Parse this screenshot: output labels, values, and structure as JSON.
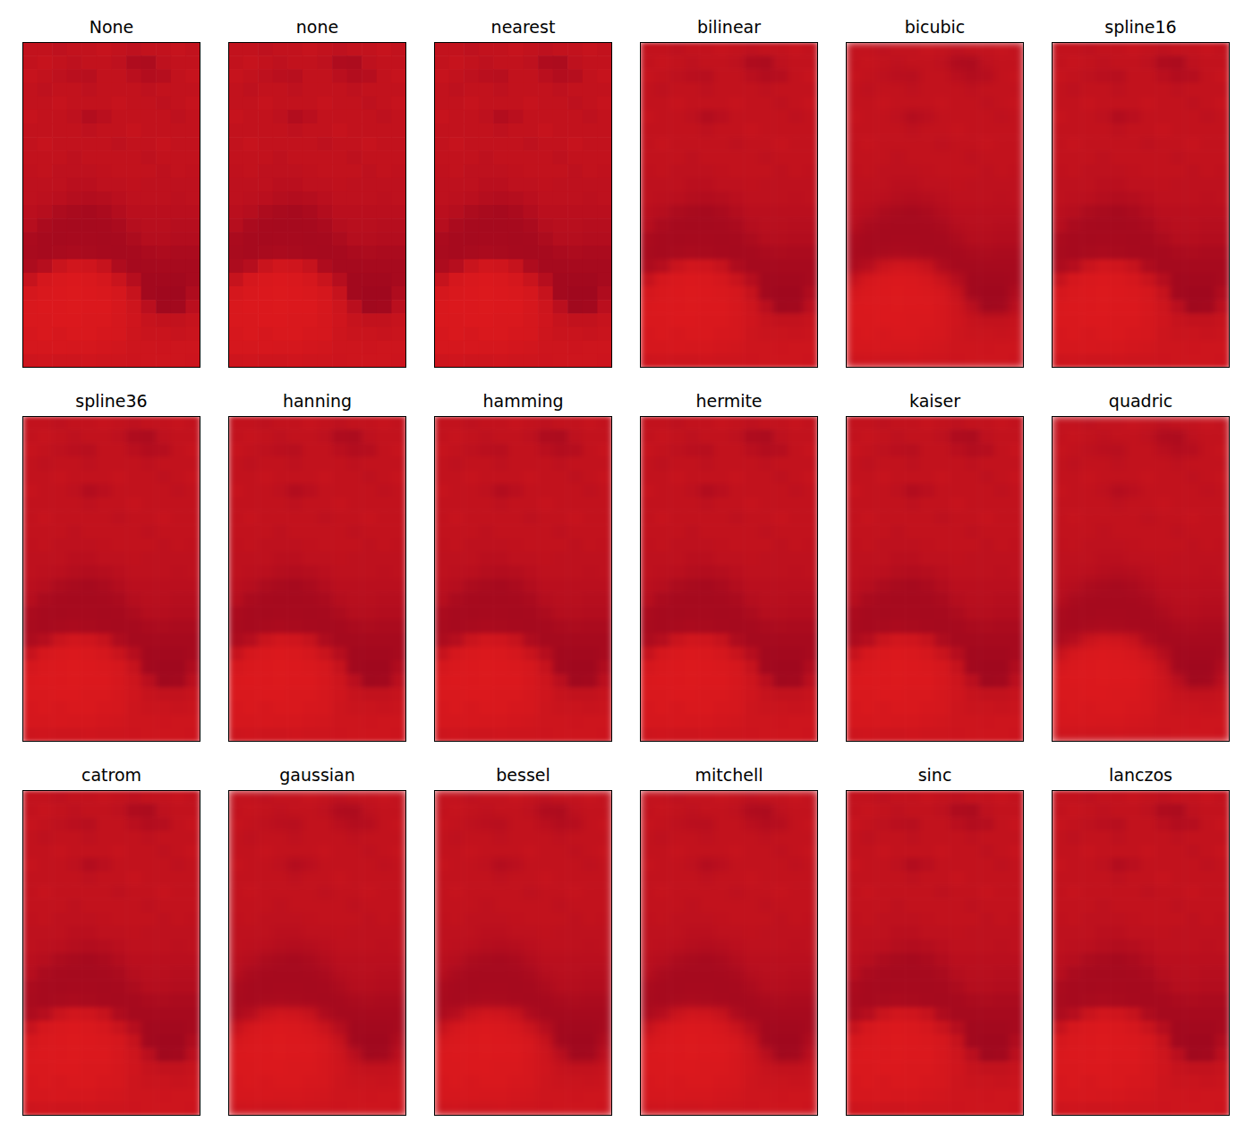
{
  "chart_data": {
    "type": "heatmap",
    "titles": [
      "None",
      "none",
      "nearest",
      "bilinear",
      "bicubic",
      "spline16",
      "spline36",
      "hanning",
      "hamming",
      "hermite",
      "kaiser",
      "quadric",
      "catrom",
      "gaussian",
      "bessel",
      "mitchell",
      "sinc",
      "lanczos"
    ],
    "tick_labels": false,
    "cells": [
      [
        0.45,
        0.45,
        0.5,
        0.45,
        0.45,
        0.4,
        0.45,
        0.5,
        0.45,
        0.45,
        0.4,
        0.45
      ],
      [
        0.45,
        0.4,
        0.45,
        0.5,
        0.45,
        0.45,
        0.5,
        0.7,
        0.72,
        0.5,
        0.45,
        0.45
      ],
      [
        0.4,
        0.45,
        0.5,
        0.55,
        0.58,
        0.45,
        0.45,
        0.55,
        0.65,
        0.6,
        0.45,
        0.4
      ],
      [
        0.45,
        0.5,
        0.45,
        0.45,
        0.5,
        0.45,
        0.45,
        0.45,
        0.5,
        0.45,
        0.45,
        0.45
      ],
      [
        0.45,
        0.45,
        0.4,
        0.45,
        0.45,
        0.45,
        0.4,
        0.45,
        0.45,
        0.5,
        0.45,
        0.4
      ],
      [
        0.4,
        0.45,
        0.45,
        0.5,
        0.65,
        0.55,
        0.45,
        0.45,
        0.45,
        0.45,
        0.5,
        0.45
      ],
      [
        0.45,
        0.45,
        0.45,
        0.45,
        0.5,
        0.45,
        0.45,
        0.4,
        0.45,
        0.45,
        0.45,
        0.45
      ],
      [
        0.45,
        0.4,
        0.45,
        0.45,
        0.45,
        0.45,
        0.5,
        0.45,
        0.45,
        0.4,
        0.45,
        0.45
      ],
      [
        0.45,
        0.45,
        0.45,
        0.5,
        0.45,
        0.45,
        0.45,
        0.45,
        0.5,
        0.45,
        0.45,
        0.45
      ],
      [
        0.48,
        0.45,
        0.5,
        0.5,
        0.5,
        0.48,
        0.45,
        0.45,
        0.45,
        0.5,
        0.45,
        0.48
      ],
      [
        0.5,
        0.5,
        0.5,
        0.55,
        0.55,
        0.5,
        0.5,
        0.48,
        0.5,
        0.5,
        0.5,
        0.5
      ],
      [
        0.5,
        0.52,
        0.55,
        0.62,
        0.65,
        0.62,
        0.55,
        0.5,
        0.5,
        0.5,
        0.52,
        0.5
      ],
      [
        0.55,
        0.6,
        0.72,
        0.78,
        0.8,
        0.75,
        0.65,
        0.55,
        0.55,
        0.55,
        0.55,
        0.55
      ],
      [
        0.6,
        0.75,
        0.8,
        0.82,
        0.82,
        0.8,
        0.75,
        0.62,
        0.58,
        0.58,
        0.6,
        0.6
      ],
      [
        0.75,
        0.8,
        0.82,
        0.8,
        0.8,
        0.82,
        0.8,
        0.72,
        0.62,
        0.62,
        0.65,
        0.65
      ],
      [
        0.78,
        0.8,
        0.78,
        0.75,
        0.78,
        0.8,
        0.82,
        0.8,
        0.75,
        0.72,
        0.75,
        0.75
      ],
      [
        0.72,
        0.6,
        0.35,
        0.25,
        0.28,
        0.4,
        0.7,
        0.82,
        0.82,
        0.8,
        0.8,
        0.8
      ],
      [
        0.4,
        0.2,
        0.15,
        0.12,
        0.15,
        0.2,
        0.35,
        0.6,
        0.85,
        0.85,
        0.85,
        0.8
      ],
      [
        0.2,
        0.15,
        0.12,
        0.1,
        0.12,
        0.15,
        0.2,
        0.4,
        0.85,
        0.9,
        0.9,
        0.7
      ],
      [
        0.15,
        0.12,
        0.12,
        0.1,
        0.12,
        0.12,
        0.18,
        0.3,
        0.55,
        0.88,
        0.85,
        0.55
      ],
      [
        0.15,
        0.15,
        0.12,
        0.12,
        0.15,
        0.15,
        0.2,
        0.28,
        0.4,
        0.45,
        0.45,
        0.4
      ],
      [
        0.18,
        0.15,
        0.18,
        0.15,
        0.15,
        0.18,
        0.2,
        0.3,
        0.35,
        0.35,
        0.38,
        0.35
      ],
      [
        0.2,
        0.2,
        0.18,
        0.2,
        0.2,
        0.22,
        0.25,
        0.3,
        0.3,
        0.32,
        0.3,
        0.3
      ],
      [
        0.3,
        0.28,
        0.3,
        0.3,
        0.28,
        0.3,
        0.3,
        0.32,
        0.3,
        0.3,
        0.3,
        0.32
      ]
    ]
  }
}
